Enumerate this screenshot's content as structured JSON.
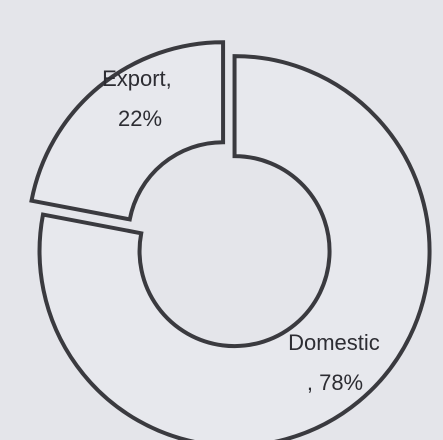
{
  "chart_data": {
    "type": "pie",
    "variant": "donut",
    "exploded": true,
    "slices": [
      {
        "name": "Domestic",
        "value": 78,
        "label_line1": "Domestic",
        "label_line2": ", 78%"
      },
      {
        "name": "Export",
        "value": 22,
        "label_line1": "Export,",
        "label_line2": "22%"
      }
    ],
    "legend": "none",
    "colors": {
      "fill": "#e7e8ed",
      "stroke": "#3a3a3f",
      "text": "#2d2d33",
      "background": "#e4e5ea"
    }
  }
}
